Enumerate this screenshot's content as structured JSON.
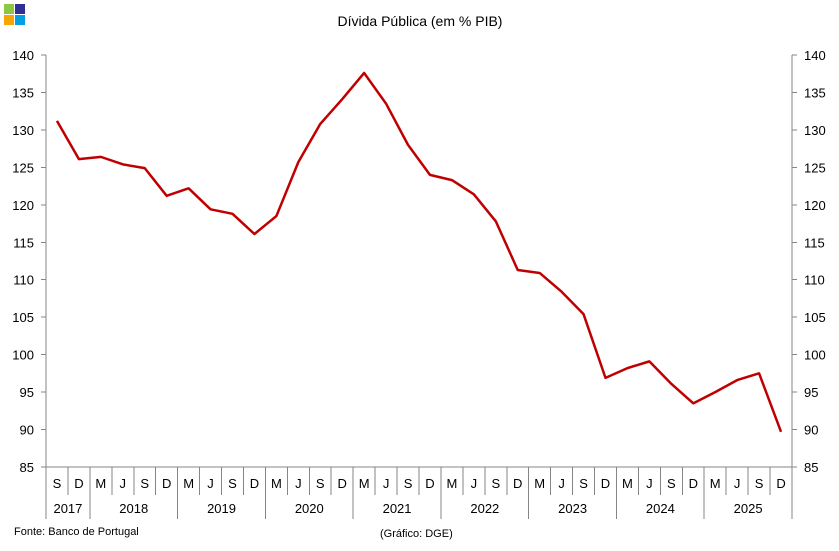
{
  "chart_data": {
    "type": "line",
    "title": "Dívida Pública (em % PIB)",
    "xlabel": "",
    "ylabel": "",
    "ylim": [
      85,
      140
    ],
    "yticks": [
      85,
      90,
      95,
      100,
      105,
      110,
      115,
      120,
      125,
      130,
      135,
      140
    ],
    "grid": false,
    "line_color": "#C00000",
    "quarter_labels": [
      "S",
      "D",
      "M",
      "J",
      "S",
      "D",
      "M",
      "J",
      "S",
      "D",
      "M",
      "J",
      "S",
      "D",
      "M",
      "J",
      "S",
      "D",
      "M",
      "J",
      "S",
      "D",
      "M",
      "J",
      "S",
      "D",
      "M",
      "J",
      "S",
      "D",
      "M",
      "J",
      "S",
      "D"
    ],
    "year_groups": [
      {
        "label": "2017",
        "count": 2
      },
      {
        "label": "2018",
        "count": 4
      },
      {
        "label": "2019",
        "count": 4
      },
      {
        "label": "2020",
        "count": 4
      },
      {
        "label": "2021",
        "count": 4
      },
      {
        "label": "2022",
        "count": 4
      },
      {
        "label": "2023",
        "count": 4
      },
      {
        "label": "2024",
        "count": 4
      },
      {
        "label": "2025",
        "count": 4
      }
    ],
    "series": [
      {
        "values": [
          131.2,
          126.1,
          126.4,
          125.4,
          124.9,
          121.2,
          122.2,
          119.4,
          118.8,
          116.1,
          118.5,
          125.7,
          130.8,
          134.1,
          137.6,
          133.5,
          128.0,
          124.0,
          123.3,
          121.4,
          117.8,
          111.3,
          110.9,
          108.4,
          105.4,
          96.9,
          98.2,
          99.1,
          96.1,
          93.5,
          95.0,
          96.6,
          97.5,
          89.7
        ]
      }
    ]
  },
  "footer": {
    "source": "Fonte: Banco de Portugal",
    "credit": "(Gráfico: DGE)"
  },
  "logo": {
    "colors": [
      "#8DC63F",
      "#2E3192",
      "#F7A600",
      "#00A0E3"
    ]
  }
}
